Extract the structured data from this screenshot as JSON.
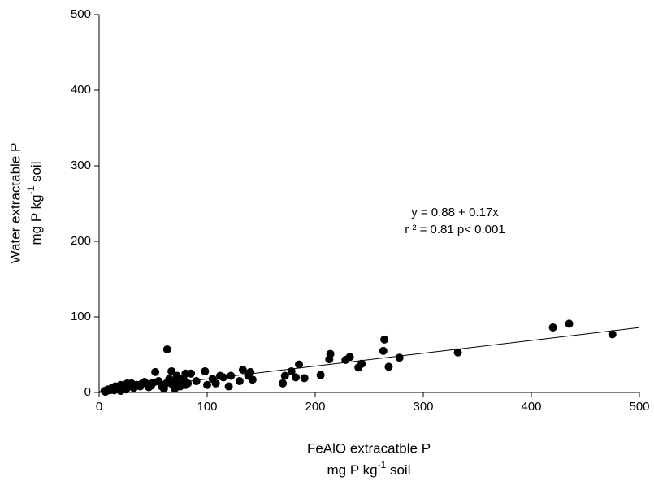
{
  "chart_data": {
    "type": "scatter",
    "xlabel": [
      "FeAlO extracatble P",
      "mg P kg",
      "-1",
      " soil"
    ],
    "ylabel": [
      "Water extractable P",
      "mg P kg",
      "-1",
      " soil"
    ],
    "annotations": [
      "y = 0.88 + 0.17x",
      "r ² = 0.81 p< 0.001"
    ],
    "x": [
      5,
      6,
      8,
      10,
      12,
      14,
      15,
      18,
      20,
      20,
      22,
      24,
      25,
      26,
      28,
      30,
      32,
      35,
      38,
      40,
      42,
      45,
      46,
      48,
      50,
      52,
      55,
      58,
      60,
      62,
      63,
      65,
      67,
      68,
      70,
      70,
      72,
      75,
      75,
      78,
      80,
      80,
      82,
      85,
      90,
      98,
      100,
      105,
      108,
      112,
      115,
      120,
      122,
      130,
      133,
      138,
      140,
      142,
      170,
      172,
      178,
      182,
      185,
      190,
      205,
      213,
      214,
      228,
      232,
      240,
      243,
      263,
      264,
      268,
      278,
      332,
      420,
      435,
      475
    ],
    "values": [
      2,
      1,
      4,
      3,
      6,
      3,
      8,
      5,
      10,
      2,
      7,
      5,
      4,
      12,
      9,
      12,
      6,
      10,
      8,
      12,
      14,
      11,
      7,
      9,
      13,
      27,
      15,
      8,
      5,
      12,
      57,
      18,
      28,
      10,
      15,
      5,
      22,
      8,
      12,
      18,
      25,
      10,
      12,
      25,
      15,
      28,
      10,
      18,
      12,
      22,
      20,
      8,
      22,
      15,
      30,
      22,
      27,
      17,
      12,
      22,
      28,
      20,
      37,
      19,
      23,
      44,
      51,
      43,
      47,
      33,
      38,
      55,
      70,
      34,
      46,
      53,
      86,
      91,
      77
    ],
    "color": "#000000",
    "fit_line": {
      "x": [
        0,
        500
      ],
      "y": [
        0.88,
        85.88
      ]
    },
    "xlim": [
      0,
      500
    ],
    "ylim": [
      0,
      500
    ],
    "xticks": [
      0,
      100,
      200,
      300,
      400,
      500
    ],
    "yticks": [
      0,
      100,
      200,
      300,
      400,
      500
    ],
    "grid": false
  }
}
